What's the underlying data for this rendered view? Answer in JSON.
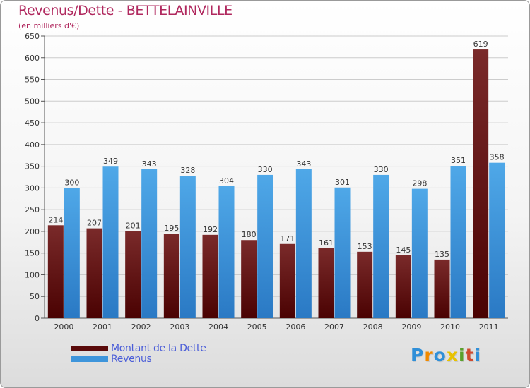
{
  "title": "Revenus/Dette - BETTELAINVILLE",
  "subtitle": "(en milliers d'€)",
  "colors": {
    "title": "#b0285e",
    "axis": "#555555",
    "grid": "#cccccc",
    "dette_top": "#7a2a2a",
    "dette_bottom": "#4a0202",
    "revenus_top": "#4fa8e8",
    "revenus_bottom": "#2a79c4",
    "legend_text": "#4a5dd8"
  },
  "legend": [
    {
      "label": "Montant de la Dette",
      "color": "#5a0a0a"
    },
    {
      "label": "Revenus",
      "color": "#3e95db"
    }
  ],
  "brand": {
    "letters": [
      "P",
      "r",
      "o",
      "x",
      "i",
      "t",
      "i"
    ],
    "colors": [
      "#2f8fd8",
      "#f18a00",
      "#2f8fd8",
      "#e8c200",
      "#5aa02c",
      "#d04a2f",
      "#2f8fd8"
    ]
  },
  "chart_data": {
    "type": "bar",
    "title": "Revenus/Dette - BETTELAINVILLE",
    "subtitle": "(en milliers d'€)",
    "xlabel": "",
    "ylabel": "",
    "categories": [
      "2000",
      "2001",
      "2002",
      "2003",
      "2004",
      "2005",
      "2006",
      "2007",
      "2008",
      "2009",
      "2010",
      "2011"
    ],
    "series": [
      {
        "name": "Montant de la Dette",
        "values": [
          214,
          207,
          201,
          195,
          192,
          180,
          171,
          161,
          153,
          145,
          135,
          619
        ]
      },
      {
        "name": "Revenus",
        "values": [
          300,
          349,
          343,
          328,
          304,
          330,
          343,
          301,
          330,
          298,
          351,
          358
        ]
      }
    ],
    "ylim": [
      0,
      650
    ],
    "yticks": [
      0,
      50,
      100,
      150,
      200,
      250,
      300,
      350,
      400,
      450,
      500,
      550,
      600,
      650
    ],
    "grid": true,
    "legend_position": "bottom-left",
    "data_labels": true
  }
}
